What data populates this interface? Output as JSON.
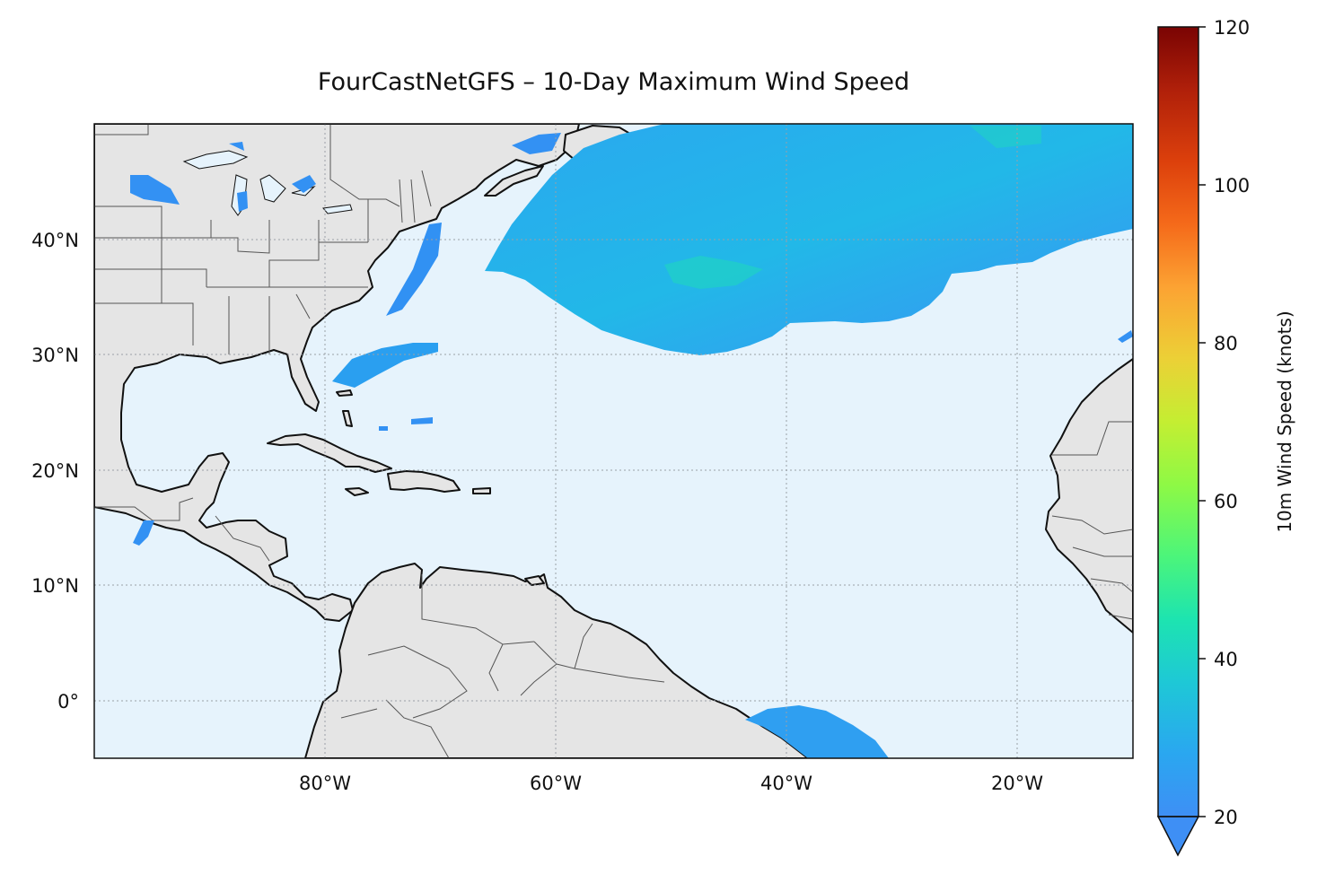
{
  "title": "FourCastNetGFS – 10-Day Maximum Wind Speed",
  "map": {
    "extent": {
      "lon_min": -100,
      "lon_max": -10,
      "lat_min": -5,
      "lat_max": 50
    },
    "gridlines": true,
    "x_ticks": [
      {
        "lon": -80,
        "label": "80°W"
      },
      {
        "lon": -60,
        "label": "60°W"
      },
      {
        "lon": -40,
        "label": "40°W"
      },
      {
        "lon": -20,
        "label": "20°W"
      }
    ],
    "y_ticks": [
      {
        "lat": 40,
        "label": "40°N"
      },
      {
        "lat": 30,
        "label": "30°N"
      },
      {
        "lat": 20,
        "label": "20°N"
      },
      {
        "lat": 10,
        "label": "10°N"
      },
      {
        "lat": 0,
        "label": "0°"
      }
    ],
    "colors": {
      "ocean": "#e6f3fc",
      "land": "#e5e5e5",
      "coast": "#111111",
      "borders": "#555555"
    }
  },
  "colorbar": {
    "label": "10m Wind Speed (knots)",
    "min": 20,
    "max": 120,
    "extend": "min",
    "ticks": [
      20,
      40,
      60,
      80,
      100,
      120
    ],
    "colormap": "turbo"
  }
}
